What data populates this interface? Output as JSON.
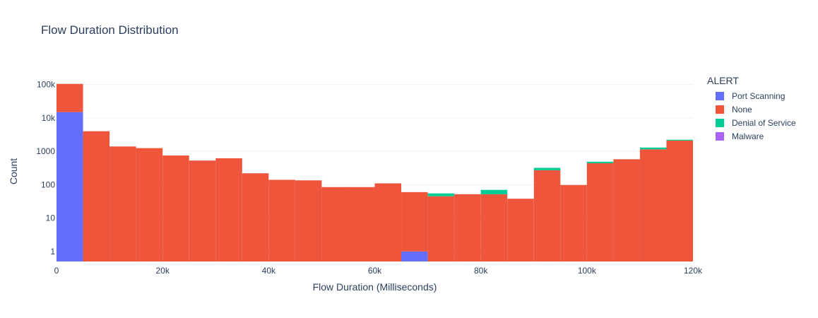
{
  "chart_data": {
    "type": "bar",
    "barmode": "stack",
    "title": "Flow Duration Distribution",
    "xlabel": "Flow Duration (Milliseconds)",
    "ylabel": "Count",
    "xlim": [
      0,
      120000
    ],
    "ylim_log10": [
      -0.3,
      5.1
    ],
    "yscale": "log",
    "bin_width": 5000,
    "x": [
      2500,
      7500,
      12500,
      17500,
      22500,
      27500,
      32500,
      37500,
      42500,
      47500,
      52500,
      57500,
      62500,
      67500,
      72500,
      77500,
      82500,
      87500,
      92500,
      97500,
      102500,
      107500,
      112500,
      117500
    ],
    "xticks": [
      0,
      20000,
      40000,
      60000,
      80000,
      100000,
      120000
    ],
    "xtick_labels": [
      "0",
      "20k",
      "40k",
      "60k",
      "80k",
      "100k",
      "120k"
    ],
    "yticks": [
      1,
      10,
      100,
      1000,
      10000,
      100000
    ],
    "ytick_labels": [
      "1",
      "10",
      "100",
      "1000",
      "10k",
      "100k"
    ],
    "grid": true,
    "legend_title": "ALERT",
    "legend_position": "right",
    "series": [
      {
        "name": "Port Scanning",
        "color": "#636efa",
        "values": [
          15000,
          0,
          0,
          0,
          0,
          0,
          0,
          0,
          0,
          0,
          0,
          0,
          0,
          1,
          0,
          0,
          0,
          0,
          0,
          0,
          0,
          0,
          0,
          0
        ]
      },
      {
        "name": "None",
        "color": "#ef553b",
        "values": [
          90000,
          4000,
          1400,
          1250,
          750,
          530,
          620,
          220,
          140,
          135,
          85,
          85,
          110,
          59,
          45,
          52,
          52,
          38,
          270,
          98,
          440,
          580,
          1150,
          2100
        ]
      },
      {
        "name": "Denial of Service",
        "color": "#00cc96",
        "values": [
          0,
          0,
          0,
          0,
          0,
          0,
          0,
          0,
          0,
          0,
          0,
          0,
          0,
          0,
          10,
          0,
          18,
          0,
          50,
          0,
          50,
          0,
          150,
          130
        ]
      },
      {
        "name": "Malware",
        "color": "#ab63fa",
        "values": [
          0,
          0,
          0,
          0,
          0,
          0,
          0,
          0,
          0,
          0,
          0,
          0,
          0,
          0,
          0,
          0,
          0,
          0,
          0,
          0,
          0,
          0,
          0,
          0
        ]
      }
    ]
  }
}
